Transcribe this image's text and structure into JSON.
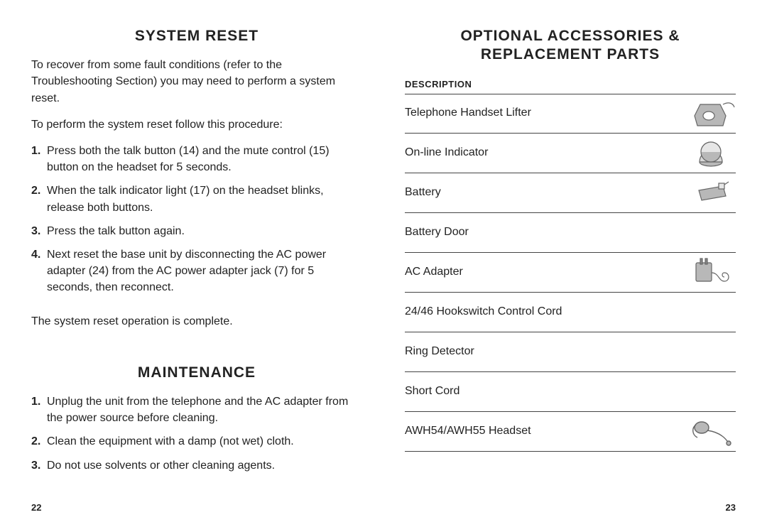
{
  "left": {
    "heading1": "SYSTEM RESET",
    "p1": "To recover from some fault conditions (refer to the Troubleshooting Section) you may need to perform a system reset.",
    "p2": "To perform the system reset follow this procedure:",
    "steps1": [
      "Press both the talk button (14) and the mute control (15) button on the headset for 5 seconds.",
      "When the talk indicator light (17) on the headset blinks, release both buttons.",
      "Press the talk button again.",
      "Next reset the base unit by disconnecting the AC power adapter (24) from the AC power adapter jack (7) for 5 seconds, then reconnect."
    ],
    "p3": "The system reset operation is complete.",
    "heading2": "MAINTENANCE",
    "steps2": [
      "Unplug the unit from the telephone and the AC adapter from the power source before cleaning.",
      "Clean the equipment with a damp (not wet) cloth.",
      "Do not use solvents or other cleaning agents."
    ],
    "page": "22"
  },
  "right": {
    "heading": "OPTIONAL ACCESSORIES & REPLACEMENT PARTS",
    "desc_label": "DESCRIPTION",
    "items": [
      {
        "name": "Telephone Handset Lifter",
        "icon": "lifter"
      },
      {
        "name": "On-line Indicator",
        "icon": "olindicator"
      },
      {
        "name": "Battery",
        "icon": "battery"
      },
      {
        "name": "Battery Door",
        "icon": ""
      },
      {
        "name": "AC Adapter",
        "icon": "acadapter"
      },
      {
        "name": "24/46 Hookswitch Control Cord",
        "icon": ""
      },
      {
        "name": "Ring Detector",
        "icon": ""
      },
      {
        "name": "Short Cord",
        "icon": ""
      },
      {
        "name": "AWH54/AWH55 Headset",
        "icon": "headset"
      }
    ],
    "page": "23"
  },
  "colors": {
    "text": "#222222",
    "rule": "#444444",
    "iconFill": "#b8b8b8",
    "iconStroke": "#666666"
  }
}
